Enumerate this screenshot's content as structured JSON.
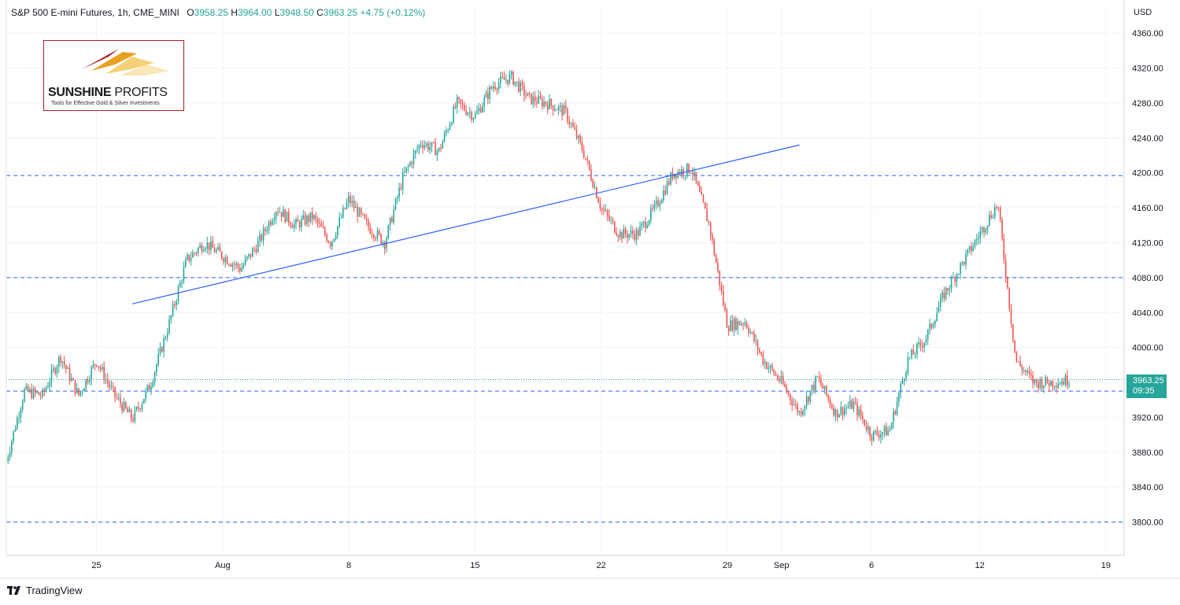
{
  "header": {
    "symbol": "S&P 500 E-mini Futures, 1h, CME_MINI",
    "open_label": "O",
    "open": "3958.25",
    "high_label": "H",
    "high": "3964.00",
    "low_label": "L",
    "low": "3948.50",
    "close_label": "C",
    "close": "3963.25",
    "change": "+4.75 (+0.12%)"
  },
  "currency": "USD",
  "last_price": {
    "price": "3963.25",
    "countdown": "09:35"
  },
  "logo": {
    "title_bold": "SUNSHINE",
    "title_light": " PROFITS",
    "tagline": "Tools for Effective Gold & Silver Investments"
  },
  "footer": {
    "brand": "TradingView"
  },
  "colors": {
    "up": "#26a69a",
    "down": "#ef5350",
    "level_line": "#2962ff",
    "trend_line": "#2962ff",
    "last_price_tag": "#26a69a",
    "logo_border": "#b01c24"
  },
  "chart_data": {
    "type": "candlestick",
    "timeframe": "1h",
    "y_axis": {
      "ylim": [
        3760,
        4380
      ],
      "ticks": [
        "4360.00",
        "4320.00",
        "4280.00",
        "4240.00",
        "4200.00",
        "4160.00",
        "4120.00",
        "4080.00",
        "4040.00",
        "4000.00",
        "3960.00",
        "3920.00",
        "3880.00",
        "3840.00",
        "3800.00"
      ],
      "position": "right"
    },
    "x_axis": {
      "ticks": [
        "25",
        "Aug",
        "8",
        "15",
        "22",
        "29",
        "Sep",
        "6",
        "12",
        "19"
      ]
    },
    "grid": true,
    "horizontal_levels": [
      4197,
      4080,
      3950,
      3800
    ],
    "trend_line": {
      "start": {
        "date": "Jul 27",
        "price": 4050
      },
      "end": {
        "date": "Sep 2",
        "price": 4232
      }
    },
    "path": [
      [
        "Jul 20",
        3870
      ],
      [
        "Jul 21",
        3950
      ],
      [
        "Jul 22",
        3945
      ],
      [
        "Jul 23",
        3990
      ],
      [
        "Jul 24",
        3945
      ],
      [
        "Jul 25",
        3985
      ],
      [
        "Jul 26",
        3945
      ],
      [
        "Jul 27",
        3918
      ],
      [
        "Jul 28",
        3958
      ],
      [
        "Jul 29",
        4025
      ],
      [
        "Jul 30",
        4100
      ],
      [
        "Jul 31",
        4120
      ],
      [
        "Aug 1",
        4105
      ],
      [
        "Aug 2",
        4090
      ],
      [
        "Aug 3",
        4120
      ],
      [
        "Aug 4",
        4160
      ],
      [
        "Aug 5",
        4140
      ],
      [
        "Aug 6",
        4150
      ],
      [
        "Aug 7",
        4120
      ],
      [
        "Aug 8",
        4170
      ],
      [
        "Aug 9",
        4140
      ],
      [
        "Aug 10",
        4120
      ],
      [
        "Aug 11",
        4195
      ],
      [
        "Aug 12",
        4235
      ],
      [
        "Aug 13",
        4225
      ],
      [
        "Aug 14",
        4280
      ],
      [
        "Aug 15",
        4265
      ],
      [
        "Aug 16",
        4300
      ],
      [
        "Aug 17",
        4310
      ],
      [
        "Aug 18",
        4285
      ],
      [
        "Aug 19",
        4280
      ],
      [
        "Aug 20",
        4270
      ],
      [
        "Aug 21",
        4225
      ],
      [
        "Aug 22",
        4160
      ],
      [
        "Aug 23",
        4130
      ],
      [
        "Aug 24",
        4130
      ],
      [
        "Aug 25",
        4160
      ],
      [
        "Aug 26",
        4200
      ],
      [
        "Aug 27",
        4205
      ],
      [
        "Aug 28",
        4140
      ],
      [
        "Aug 29",
        4025
      ],
      [
        "Aug 30",
        4030
      ],
      [
        "Aug 31",
        3985
      ],
      [
        "Sep 1",
        3960
      ],
      [
        "Sep 2",
        3925
      ],
      [
        "Sep 3",
        3965
      ],
      [
        "Sep 4",
        3925
      ],
      [
        "Sep 5",
        3935
      ],
      [
        "Sep 6",
        3900
      ],
      [
        "Sep 7",
        3905
      ],
      [
        "Sep 8",
        3985
      ],
      [
        "Sep 9",
        4010
      ],
      [
        "Sep 10",
        4060
      ],
      [
        "Sep 11",
        4095
      ],
      [
        "Sep 12",
        4130
      ],
      [
        "Sep 13",
        4165
      ],
      [
        "Sep 14",
        3985
      ],
      [
        "Sep 15",
        3960
      ],
      [
        "Sep 16",
        3960
      ],
      [
        "Sep 17",
        3963
      ]
    ]
  }
}
